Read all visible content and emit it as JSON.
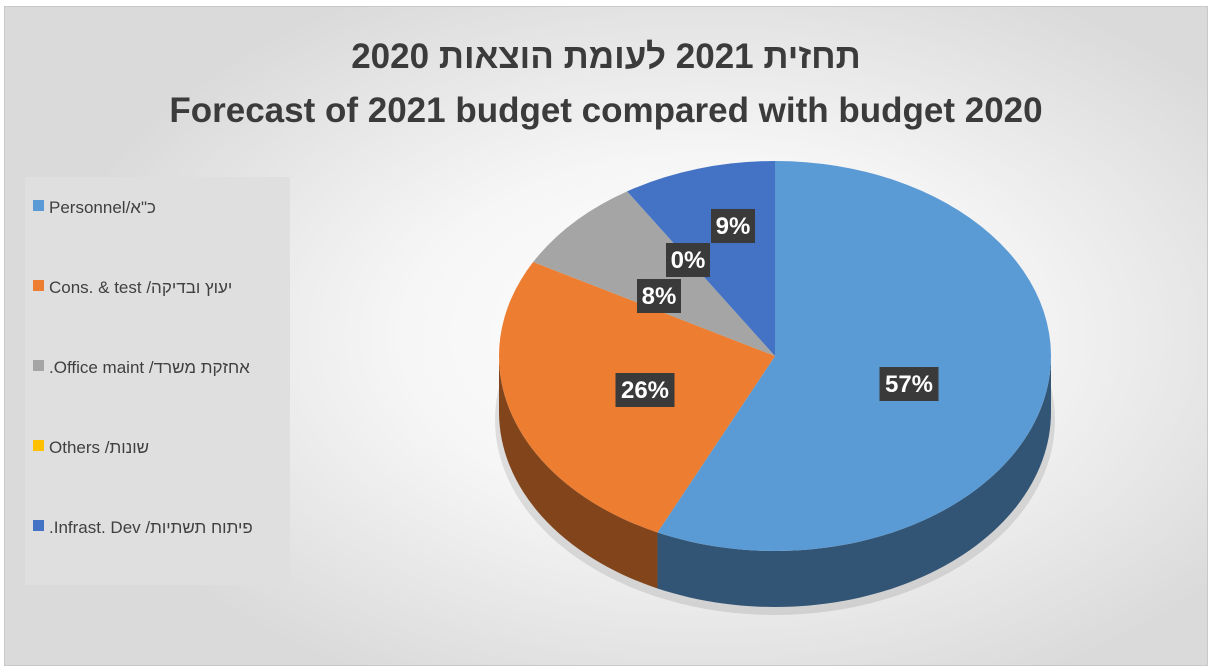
{
  "chart_data": {
    "type": "pie",
    "title": "תחזית 2021 לעומת הוצאות 2020",
    "subtitle": "Forecast of 2021 budget compared with budget 2020",
    "categories": [
      "כ\"א/Personnel",
      "יעוץ ובדיקה/ Cons. & test",
      "אחזקת משרד/ Office maint.",
      "שונות/ Others",
      "פיתוח תשתיות/ Infrast. Dev."
    ],
    "values": [
      57,
      26,
      8,
      0,
      9
    ],
    "data_labels": [
      "57%",
      "26%",
      "8%",
      "0%",
      "9%"
    ],
    "colors": [
      "#5b9bd5",
      "#ed7d31",
      "#a5a5a5",
      "#ffc000",
      "#4472c4"
    ],
    "legend_position": "left",
    "style": "3d"
  }
}
